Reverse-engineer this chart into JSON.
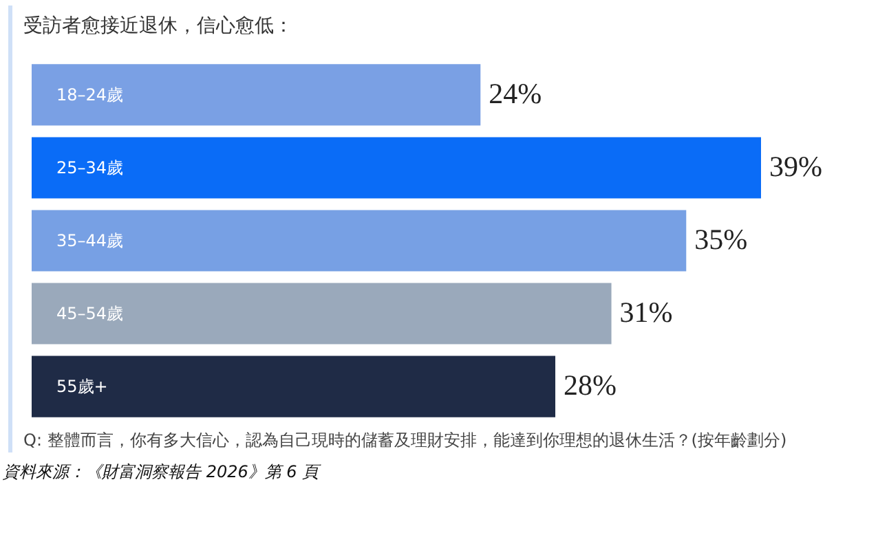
{
  "chart_data": {
    "type": "bar",
    "orientation": "horizontal",
    "title": "受訪者愈接近退休，信心愈低：",
    "categories": [
      "18–24歲",
      "25–34歲",
      "35–44歲",
      "45–54歲",
      "55歲+"
    ],
    "values": [
      24,
      39,
      35,
      31,
      28
    ],
    "colors": [
      "#7aa0e4",
      "#0a6cf7",
      "#77a0e4",
      "#9aa9bb",
      "#1f2b46"
    ],
    "value_labels": [
      "24%",
      "39%",
      "35%",
      "31%",
      "28%"
    ],
    "annotations": [
      "Q: 整體而言，你有多大信心，認為自己現時的儲蓄及理財安排，能達到你理想的退休生活？(按年齡劃分)",
      "資料來源：《財富洞察報告 2026》第 6 頁"
    ]
  }
}
